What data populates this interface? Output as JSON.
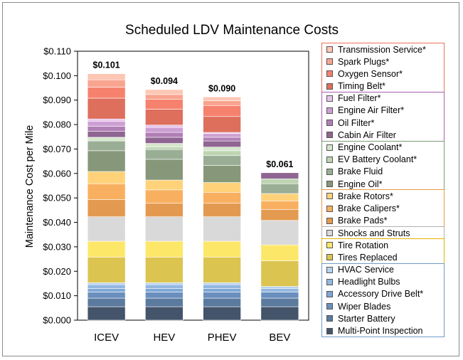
{
  "chart_data": {
    "type": "bar",
    "stacked": true,
    "title": "Scheduled LDV Maintenance Costs",
    "ylabel": "Maintenance Cost per Mile",
    "xlabel": "",
    "ylim": [
      0,
      0.11
    ],
    "yticks": [
      "$0.000",
      "$0.010",
      "$0.020",
      "$0.030",
      "$0.040",
      "$0.050",
      "$0.060",
      "$0.070",
      "$0.080",
      "$0.090",
      "$0.100",
      "$0.110"
    ],
    "categories": [
      "ICEV",
      "HEV",
      "PHEV",
      "BEV"
    ],
    "totals": [
      "$0.101",
      "$0.094",
      "$0.090",
      "$0.061"
    ],
    "legend_placement": "right",
    "groups": [
      {
        "border": "#e8735a",
        "items": [
          "Transmission Service*",
          "Spark Plugs*",
          "Oxygen Sensor*",
          "Timing Belt*"
        ]
      },
      {
        "border": "#a85fb0",
        "items": [
          "Fuel Filter*",
          "Engine Air Filter*",
          "Oil Filter*",
          "Cabin Air Filter"
        ]
      },
      {
        "border": "#7d9c78",
        "items": [
          "Engine Coolant*",
          "EV Battery Coolant*",
          "Brake Fluid",
          "Engine Oil*"
        ]
      },
      {
        "border": "#e39a45",
        "items": [
          "Brake Rotors*",
          "Brake Calipers*",
          "Brake Pads*"
        ]
      },
      {
        "border": "#b0b0b0",
        "items": [
          "Shocks and Struts"
        ]
      },
      {
        "border": "#e3b400",
        "items": [
          "Tire Rotation",
          "Tires Replaced"
        ]
      },
      {
        "border": "#6f9cc6",
        "items": [
          "HVAC Service",
          "Headlight Bulbs",
          "Accessory Drive Belt*",
          "Wiper Blades",
          "Starter Battery",
          "Multi-Point Inspection"
        ]
      }
    ],
    "series": [
      {
        "name": "Multi-Point Inspection",
        "color": "#44546a",
        "values": [
          0.0055,
          0.0055,
          0.0055,
          0.0055
        ]
      },
      {
        "name": "Starter Battery",
        "color": "#5b7a9e",
        "values": [
          0.0035,
          0.0035,
          0.0035,
          0.0035
        ]
      },
      {
        "name": "Wiper Blades",
        "color": "#6a8fbe",
        "values": [
          0.0025,
          0.0025,
          0.0025,
          0.0025
        ]
      },
      {
        "name": "Accessory Drive Belt*",
        "color": "#7ea7d6",
        "values": [
          0.0015,
          0.0015,
          0.0015,
          0.0
        ]
      },
      {
        "name": "Headlight Bulbs",
        "color": "#93b7e0",
        "values": [
          0.0015,
          0.0015,
          0.0015,
          0.0015
        ]
      },
      {
        "name": "HVAC Service",
        "color": "#b5d1ef",
        "values": [
          0.0008,
          0.0008,
          0.0008,
          0.0008
        ]
      },
      {
        "name": "Tires Replaced",
        "color": "#dcc451",
        "values": [
          0.0105,
          0.0105,
          0.0105,
          0.0105
        ]
      },
      {
        "name": "Tire Rotation",
        "color": "#fde769",
        "values": [
          0.0065,
          0.0065,
          0.0065,
          0.0065
        ]
      },
      {
        "name": "Shocks and Struts",
        "color": "#d9d9d9",
        "values": [
          0.01,
          0.01,
          0.01,
          0.01
        ]
      },
      {
        "name": "Brake Pads*",
        "color": "#e39a50",
        "values": [
          0.007,
          0.0055,
          0.0055,
          0.0045
        ]
      },
      {
        "name": "Brake Calipers*",
        "color": "#f8b060",
        "values": [
          0.0065,
          0.0055,
          0.0045,
          0.0035
        ]
      },
      {
        "name": "Brake Rotors*",
        "color": "#ffd27a",
        "values": [
          0.005,
          0.004,
          0.004,
          0.003
        ]
      },
      {
        "name": "Engine Oil*",
        "color": "#869879",
        "values": [
          0.0085,
          0.0085,
          0.007,
          0.0
        ]
      },
      {
        "name": "Brake Fluid",
        "color": "#9aae96",
        "values": [
          0.004,
          0.004,
          0.004,
          0.004
        ]
      },
      {
        "name": "EV Battery Coolant*",
        "color": "#bed4b3",
        "values": [
          0.0,
          0.001,
          0.002,
          0.002
        ]
      },
      {
        "name": "Engine Coolant*",
        "color": "#d5e6cc",
        "values": [
          0.0015,
          0.0015,
          0.0015,
          0.0
        ]
      },
      {
        "name": "Cabin Air Filter",
        "color": "#8f6592",
        "values": [
          0.0025,
          0.0025,
          0.0025,
          0.0025
        ]
      },
      {
        "name": "Oil Filter*",
        "color": "#b07fb5",
        "values": [
          0.002,
          0.002,
          0.0015,
          0.0
        ]
      },
      {
        "name": "Engine Air Filter*",
        "color": "#cd9fd3",
        "values": [
          0.002,
          0.002,
          0.0015,
          0.0
        ]
      },
      {
        "name": "Fuel Filter*",
        "color": "#e7c5ec",
        "values": [
          0.001,
          0.001,
          0.0005,
          0.0
        ]
      },
      {
        "name": "Timing Belt*",
        "color": "#dd6f5c",
        "values": [
          0.0085,
          0.0065,
          0.0065,
          0.0
        ]
      },
      {
        "name": "Oxygen Sensor*",
        "color": "#f6826e",
        "values": [
          0.0045,
          0.004,
          0.0045,
          0.0
        ]
      },
      {
        "name": "Spark Plugs*",
        "color": "#f9a48f",
        "values": [
          0.003,
          0.002,
          0.002,
          0.0
        ]
      },
      {
        "name": "Transmission Service*",
        "color": "#fdc6b3",
        "values": [
          0.0025,
          0.002,
          0.0015,
          0.0
        ]
      }
    ]
  }
}
